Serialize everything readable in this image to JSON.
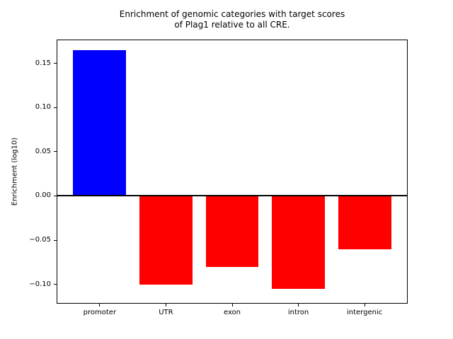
{
  "chart_data": {
    "type": "bar",
    "title": "Enrichment of genomic categories with target scores of Plag1 relative to all CRE.",
    "title_lines": [
      "Enrichment of genomic categories with target scores",
      "of Plag1 relative to all CRE."
    ],
    "xlabel": "",
    "ylabel": "Enrichment (log10)",
    "categories": [
      "promoter",
      "UTR",
      "exon",
      "intron",
      "intergenic"
    ],
    "values": [
      0.165,
      -0.1,
      -0.08,
      -0.105,
      -0.06
    ],
    "bar_colors": [
      "#0000ff",
      "#ff0000",
      "#ff0000",
      "#ff0000",
      "#ff0000"
    ],
    "positive_color": "#0000ff",
    "negative_color": "#ff0000",
    "yticks": [
      0.15,
      0.1,
      0.05,
      0.0,
      -0.05,
      -0.1
    ],
    "ytick_labels": [
      "0.15",
      "0.10",
      "0.05",
      "0.00",
      "−0.05",
      "−0.10"
    ],
    "ylim": [
      -0.121,
      0.176
    ],
    "xlim": [
      -0.64,
      4.64
    ],
    "bar_width": 0.8,
    "zero_line": true,
    "grid": false,
    "legend": null
  }
}
